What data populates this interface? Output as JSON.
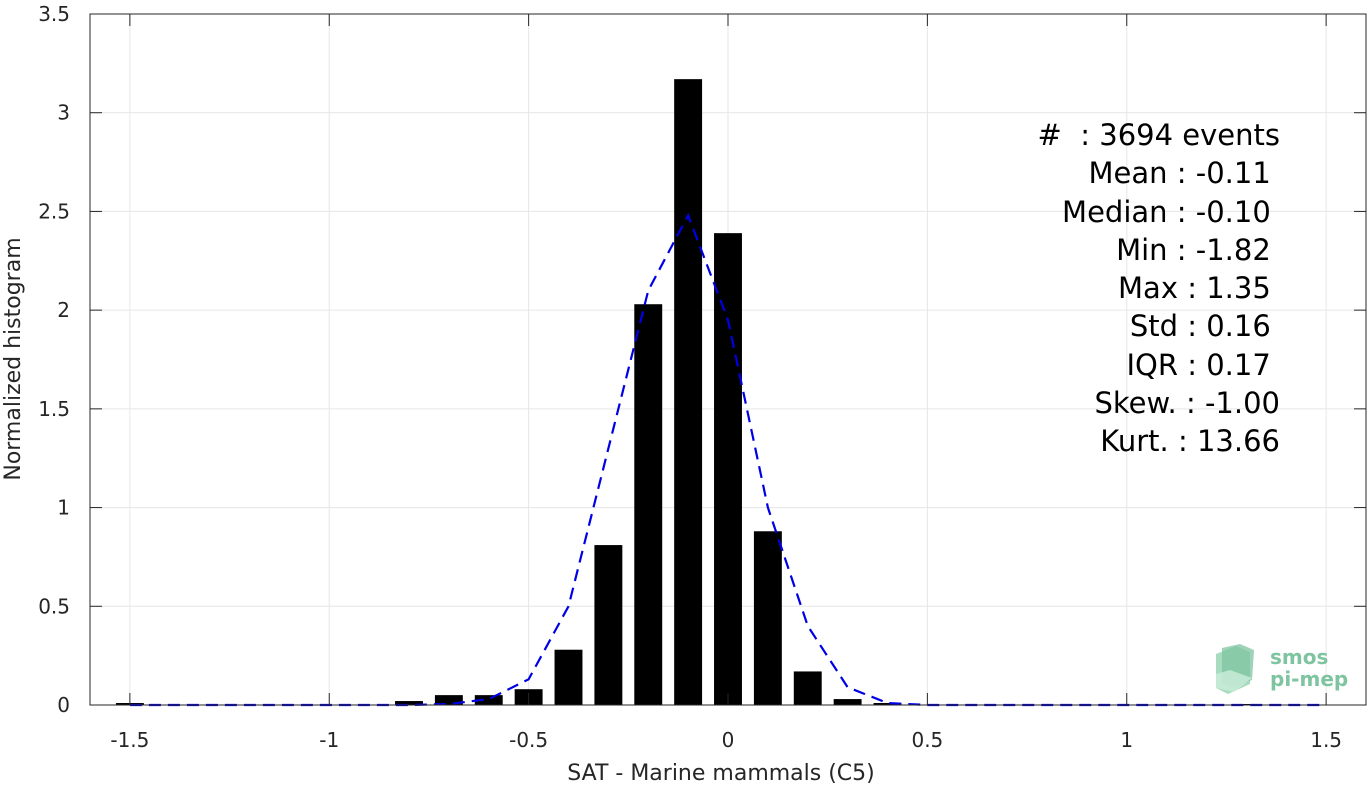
{
  "chart_data": {
    "type": "bar",
    "xlabel": "SAT - Marine mammals (C5)",
    "ylabel": "Normalized histogram",
    "xlim": [
      -1.6,
      1.6
    ],
    "ylim": [
      0,
      3.5
    ],
    "grid": true,
    "x_ticks": [
      -1.5,
      -1,
      -0.5,
      0,
      0.5,
      1,
      1.5
    ],
    "x_tick_labels": [
      "-1.5",
      "-1",
      "-0.5",
      "0",
      "0.5",
      "1",
      "1.5"
    ],
    "y_ticks": [
      0,
      0.5,
      1,
      1.5,
      2,
      2.5,
      3,
      3.5
    ],
    "y_tick_labels": [
      "0",
      "0.5",
      "1",
      "1.5",
      "2",
      "2.5",
      "3",
      "3.5"
    ],
    "bar_width": 0.07,
    "bars": {
      "x": [
        -1.5,
        -1.4,
        -1.3,
        -1.2,
        -1.1,
        -1.0,
        -0.9,
        -0.8,
        -0.7,
        -0.6,
        -0.5,
        -0.4,
        -0.3,
        -0.2,
        -0.1,
        0.0,
        0.1,
        0.2,
        0.3,
        0.4,
        0.5,
        0.6,
        0.7,
        0.8,
        0.9,
        1.0,
        1.1,
        1.2,
        1.3
      ],
      "values": [
        0.01,
        0,
        0,
        0,
        0,
        0,
        0,
        0.02,
        0.05,
        0.05,
        0.08,
        0.28,
        0.81,
        2.03,
        3.17,
        2.39,
        0.88,
        0.17,
        0.03,
        0.01,
        0,
        0,
        0,
        0,
        0,
        0,
        0,
        0,
        0.005
      ]
    },
    "fit_curve": {
      "style": "dashed",
      "color": "#0000e6",
      "x": [
        -1.5,
        -1.4,
        -1.3,
        -1.2,
        -1.1,
        -1.0,
        -0.9,
        -0.8,
        -0.7,
        -0.6,
        -0.5,
        -0.4,
        -0.3,
        -0.2,
        -0.1,
        0.0,
        0.1,
        0.2,
        0.3,
        0.4,
        0.5,
        0.6,
        0.7,
        0.8,
        0.9,
        1.0,
        1.1,
        1.2,
        1.3,
        1.4,
        1.5
      ],
      "values": [
        0,
        0,
        0,
        0,
        0,
        0,
        0,
        0,
        0.005,
        0.03,
        0.13,
        0.5,
        1.3,
        2.1,
        2.48,
        1.95,
        1.0,
        0.4,
        0.09,
        0.01,
        0,
        0,
        0,
        0,
        0,
        0,
        0,
        0,
        0,
        0,
        0
      ]
    },
    "colors": {
      "bars": "#000000",
      "grid": "#e6e6e6",
      "axes": "#262626"
    }
  },
  "stats": [
    {
      "label": "#  ",
      "value": ": 3694 events"
    },
    {
      "label": "Mean ",
      "value": ": -0.11 "
    },
    {
      "label": "Median ",
      "value": ": -0.10 "
    },
    {
      "label": "Min ",
      "value": ": -1.82 "
    },
    {
      "label": "Max ",
      "value": ": 1.35 "
    },
    {
      "label": "Std ",
      "value": ": 0.16 "
    },
    {
      "label": "IQR ",
      "value": ": 0.17 "
    },
    {
      "label": "Skew. ",
      "value": ": -1.00"
    },
    {
      "label": "Kurt. ",
      "value": ": 13.66"
    }
  ],
  "logo": {
    "line1": "smos",
    "line2": "pi-mep",
    "color": "#7fc4a0"
  }
}
